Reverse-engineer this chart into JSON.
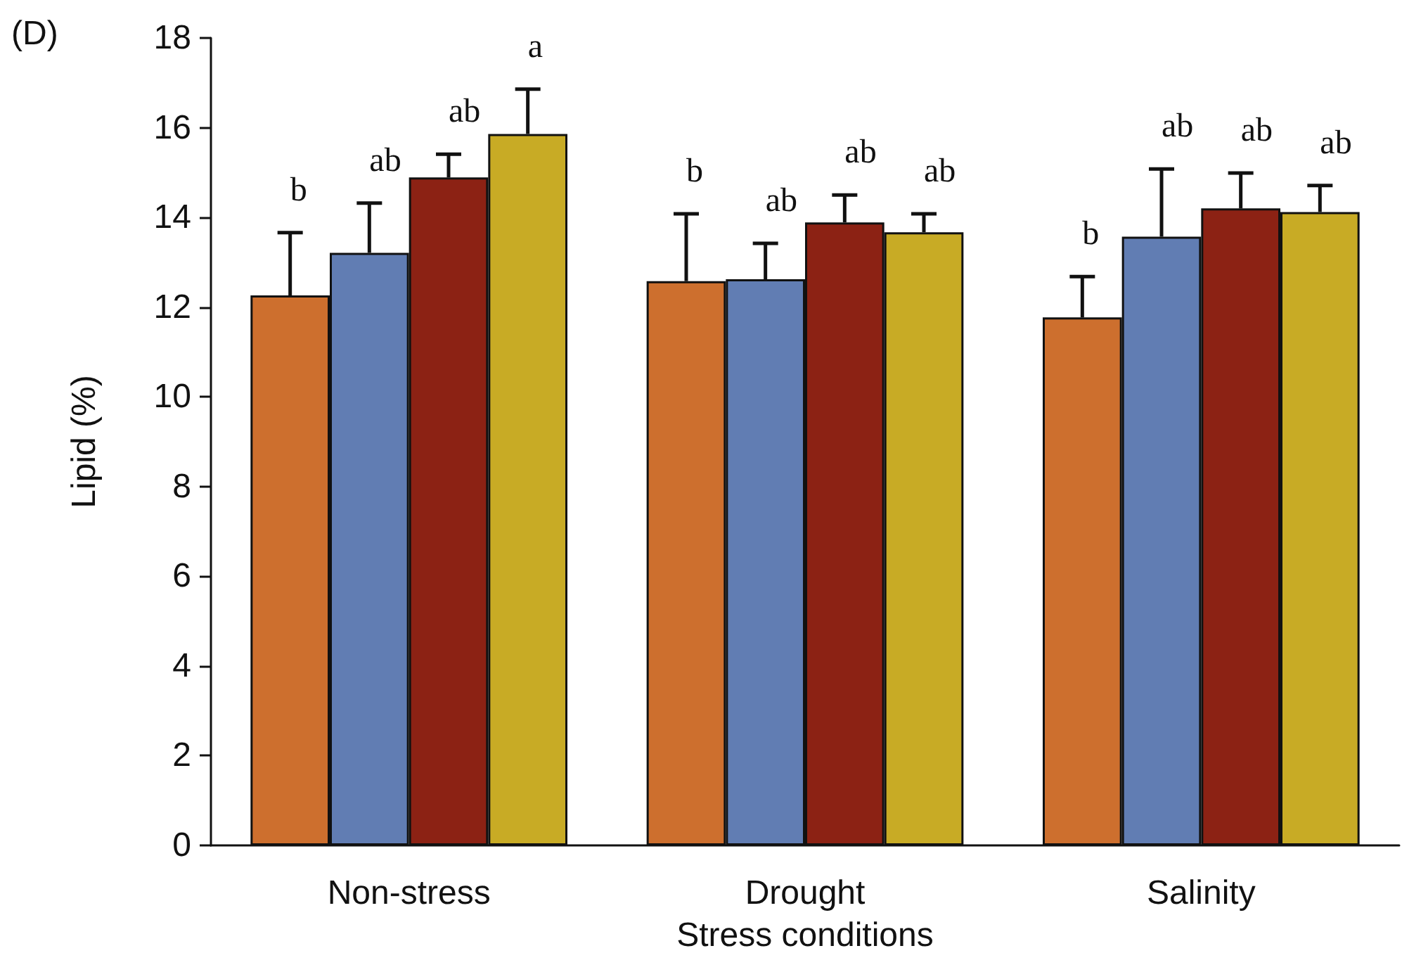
{
  "chart_data": {
    "type": "bar",
    "ylabel": "Lipid (%)",
    "xlabel": "Stress conditions",
    "annotations": [
      "(D)"
    ],
    "categories": [
      "Non-stress",
      "Drought",
      "Salinity"
    ],
    "series": [
      {
        "color": "#cd6f2e",
        "values": [
          12.26,
          12.58,
          11.77
        ],
        "errors": [
          [
            12.26,
            13.66
          ],
          [
            12.58,
            14.08
          ],
          [
            11.77,
            12.68
          ]
        ],
        "value_labels": [
          "b",
          "b",
          "b"
        ]
      },
      {
        "color": "#617db3",
        "values": [
          13.21,
          12.62,
          13.57
        ],
        "errors": [
          [
            13.21,
            14.32
          ],
          [
            12.62,
            13.42
          ],
          [
            13.57,
            15.08
          ]
        ],
        "value_labels": [
          "ab",
          "ab",
          "ab"
        ]
      },
      {
        "color": "#8c2214",
        "values": [
          14.89,
          13.89,
          14.2
        ],
        "errors": [
          [
            14.89,
            15.41
          ],
          [
            13.89,
            14.5
          ],
          [
            14.2,
            14.99
          ]
        ],
        "value_labels": [
          "ab",
          "ab",
          "ab"
        ]
      },
      {
        "color": "#c8ab25",
        "values": [
          15.86,
          13.67,
          14.12
        ],
        "errors": [
          [
            15.86,
            16.86
          ],
          [
            13.67,
            14.08
          ],
          [
            14.12,
            14.71
          ]
        ],
        "value_labels": [
          "a",
          "ab",
          "ab"
        ]
      }
    ],
    "ylim": [
      0,
      18
    ],
    "yticks": [
      0,
      2,
      4,
      6,
      8,
      10,
      12,
      14,
      16,
      18
    ]
  }
}
